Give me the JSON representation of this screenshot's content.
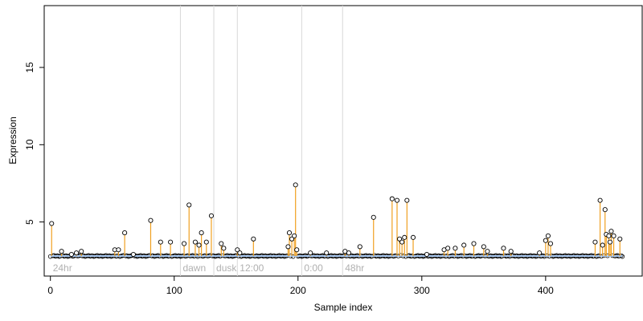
{
  "chart_data": {
    "type": "scatter",
    "xlabel": "Sample index",
    "ylabel": "Expression",
    "xlim": [
      -5,
      478
    ],
    "ylim": [
      1.5,
      19.0
    ],
    "x_ticks": [
      0,
      100,
      200,
      300,
      400
    ],
    "y_ticks": [
      5,
      10,
      15
    ],
    "baseline_value": 2.8,
    "grid": false,
    "colors": {
      "stem": "#f0a020",
      "baseline": "#a8c8f0",
      "point_stroke": "#000000",
      "separator": "#d8d8d8",
      "region_label": "#b0b0b0"
    },
    "regions": [
      {
        "label": "24hr",
        "x_start": 0
      },
      {
        "label": "dawn",
        "x_start": 105
      },
      {
        "label": "dusk",
        "x_start": 132
      },
      {
        "label": "12:00",
        "x_start": 151
      },
      {
        "label": "0:00",
        "x_start": 203
      },
      {
        "label": "48hr",
        "x_start": 236
      }
    ],
    "separators": [
      105,
      132,
      151,
      203,
      236
    ],
    "points": [
      [
        1,
        4.9
      ],
      [
        9,
        3.1
      ],
      [
        17,
        2.9
      ],
      [
        21,
        3.0
      ],
      [
        25,
        3.1
      ],
      [
        52,
        3.2
      ],
      [
        55,
        3.2
      ],
      [
        60,
        4.3
      ],
      [
        67,
        2.9
      ],
      [
        81,
        5.1
      ],
      [
        89,
        3.7
      ],
      [
        97,
        3.7
      ],
      [
        108,
        3.6
      ],
      [
        112,
        6.1
      ],
      [
        117,
        3.7
      ],
      [
        120,
        3.5
      ],
      [
        122,
        4.3
      ],
      [
        126,
        3.7
      ],
      [
        130,
        5.4
      ],
      [
        138,
        3.6
      ],
      [
        140,
        3.3
      ],
      [
        151,
        3.2
      ],
      [
        153,
        3.0
      ],
      [
        164,
        3.9
      ],
      [
        192,
        3.4
      ],
      [
        193,
        4.3
      ],
      [
        195,
        3.9
      ],
      [
        197,
        4.1
      ],
      [
        198,
        7.4
      ],
      [
        199,
        3.2
      ],
      [
        210,
        3.0
      ],
      [
        223,
        3.0
      ],
      [
        238,
        3.1
      ],
      [
        241,
        3.0
      ],
      [
        250,
        3.4
      ],
      [
        261,
        5.3
      ],
      [
        276,
        6.5
      ],
      [
        280,
        6.4
      ],
      [
        282,
        3.9
      ],
      [
        284,
        3.7
      ],
      [
        286,
        4.0
      ],
      [
        288,
        6.4
      ],
      [
        293,
        4.0
      ],
      [
        304,
        2.9
      ],
      [
        318,
        3.2
      ],
      [
        321,
        3.3
      ],
      [
        327,
        3.3
      ],
      [
        334,
        3.5
      ],
      [
        342,
        3.6
      ],
      [
        350,
        3.4
      ],
      [
        353,
        3.1
      ],
      [
        366,
        3.3
      ],
      [
        372,
        3.1
      ],
      [
        395,
        3.0
      ],
      [
        400,
        3.8
      ],
      [
        402,
        4.1
      ],
      [
        404,
        3.6
      ],
      [
        440,
        3.7
      ],
      [
        444,
        6.4
      ],
      [
        446,
        3.5
      ],
      [
        448,
        5.8
      ],
      [
        449,
        4.2
      ],
      [
        451,
        4.1
      ],
      [
        452,
        3.7
      ],
      [
        453,
        4.4
      ],
      [
        455,
        4.1
      ],
      [
        460,
        3.9
      ]
    ]
  }
}
